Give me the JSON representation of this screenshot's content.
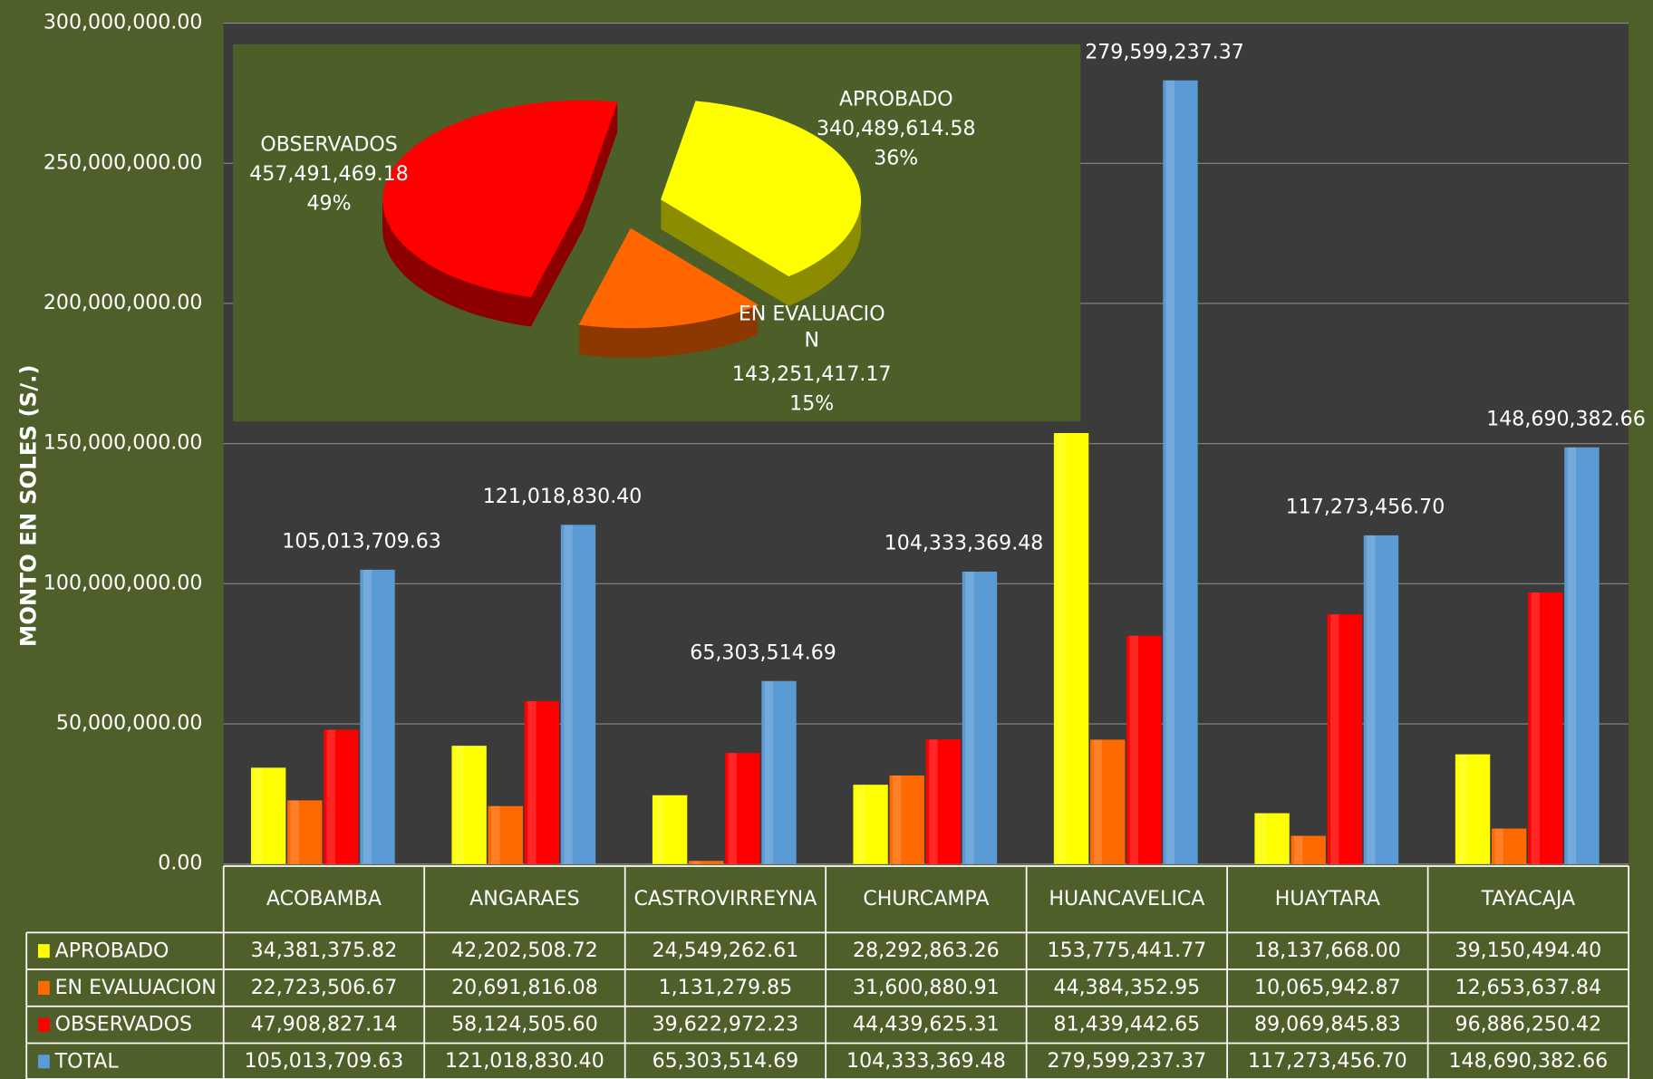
{
  "chart_data": [
    {
      "type": "bar",
      "y_label": "MONTO EN SOLES (S/.)",
      "categories": [
        "ACOBAMBA",
        "ANGARAES",
        "CASTROVIRREYNA",
        "CHURCAMPA",
        "HUANCAVELICA",
        "HUAYTARA",
        "TAYACAJA"
      ],
      "ylim": [
        0,
        300000000
      ],
      "yticks": [
        {
          "value": 0,
          "label": "0.00"
        },
        {
          "value": 50000000,
          "label": "50,000,000.00"
        },
        {
          "value": 100000000,
          "label": "100,000,000.00"
        },
        {
          "value": 150000000,
          "label": "150,000,000.00"
        },
        {
          "value": 200000000,
          "label": "200,000,000.00"
        },
        {
          "value": 250000000,
          "label": "250,000,000.00"
        },
        {
          "value": 300000000,
          "label": "300,000,000.00"
        }
      ],
      "grid": true,
      "series": [
        {
          "name": "APROBADO",
          "color": "#ffff00",
          "values": [
            34381375.82,
            42202508.72,
            24549262.61,
            28292863.26,
            153775441.77,
            18137668.0,
            39150494.4
          ],
          "value_labels": [
            "34,381,375.82",
            "42,202,508.72",
            "24,549,262.61",
            "28,292,863.26",
            "153,775,441.77",
            "18,137,668.00",
            "39,150,494.40"
          ]
        },
        {
          "name": "EN EVALUACION",
          "color": "#ff6a00",
          "values": [
            22723506.67,
            20691816.08,
            1131279.85,
            31600880.91,
            44384352.95,
            10065942.87,
            12653637.84
          ],
          "value_labels": [
            "22,723,506.67",
            "20,691,816.08",
            "1,131,279.85",
            "31,600,880.91",
            "44,384,352.95",
            "10,065,942.87",
            "12,653,637.84"
          ]
        },
        {
          "name": "OBSERVADOS",
          "color": "#ff0000",
          "values": [
            47908827.14,
            58124505.6,
            39622972.23,
            44439625.31,
            81439442.65,
            89069845.83,
            96886250.42
          ],
          "value_labels": [
            "47,908,827.14",
            "58,124,505.60",
            "39,622,972.23",
            "44,439,625.31",
            "81,439,442.65",
            "89,069,845.83",
            "96,886,250.42"
          ]
        },
        {
          "name": "TOTAL",
          "color": "#5b9bd5",
          "values": [
            105013709.63,
            121018830.4,
            65303514.69,
            104333369.48,
            279599237.37,
            117273456.7,
            148690382.66
          ],
          "value_labels": [
            "105,013,709.63",
            "121,018,830.40",
            "65,303,514.69",
            "104,333,369.48",
            "279,599,237.37",
            "117,273,456.70",
            "148,690,382.66"
          ]
        }
      ]
    },
    {
      "type": "pie",
      "categories": [
        "APROBADO",
        "EN EVALUACION",
        "OBSERVADOS"
      ],
      "values": [
        340489614.58,
        143251417.17,
        457491469.18
      ],
      "value_labels": [
        "340,489,614.58",
        "143,251,417.17",
        "457,491,469.18"
      ],
      "percentages": [
        36,
        15,
        49
      ],
      "percentage_labels": [
        "36%",
        "15%",
        "49%"
      ],
      "colors": [
        "#ffff00",
        "#ff6600",
        "#ff0000"
      ]
    }
  ]
}
